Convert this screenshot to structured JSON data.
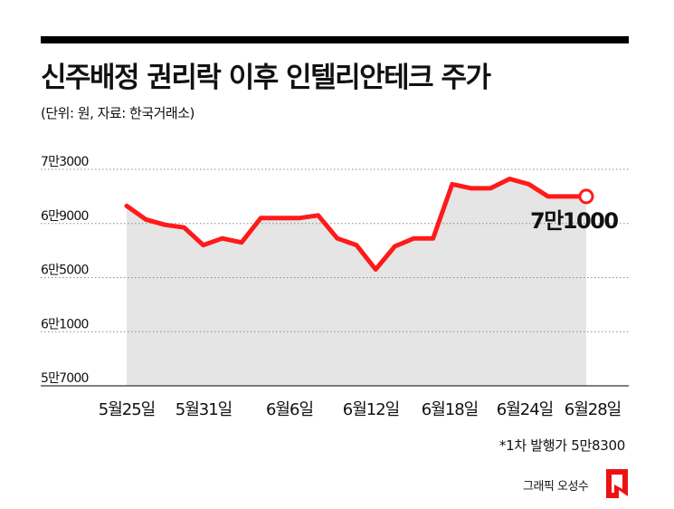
{
  "title": "신주배정 권리락 이후 인텔리안테크 주가",
  "subtitle": "(단위: 원, 자료: 한국거래소)",
  "footnote": "*1차 발행가 5만8300",
  "credit": "그래픽 오성수",
  "colors": {
    "line": "#ff1a1a",
    "area": "#e5e5e5",
    "grid": "#8c8c8c",
    "topbar": "#000000"
  },
  "chart_data": {
    "type": "area",
    "ylim": [
      57000,
      73000
    ],
    "yticks": [
      73000,
      69000,
      65000,
      61000,
      57000
    ],
    "ytick_labels": [
      "7만3000",
      "6만9000",
      "6만5000",
      "6만1000",
      "5만7000"
    ],
    "xtick_labels": [
      "5월25일",
      "5월31일",
      "6월6일",
      "6월12일",
      "6월18일",
      "6월24일",
      "6월28일"
    ],
    "end_label": "7만1000",
    "series": [
      {
        "dates": [
          "5/25",
          "5/26",
          "5/29",
          "5/30",
          "5/31",
          "6/1",
          "6/2",
          "6/5",
          "6/6",
          "6/7",
          "6/8",
          "6/9",
          "6/12",
          "6/13",
          "6/14",
          "6/15",
          "6/16",
          "6/19",
          "6/20",
          "6/21",
          "6/22",
          "6/23",
          "6/26",
          "6/27",
          "6/28"
        ],
        "values": [
          70300,
          69300,
          68900,
          68700,
          67400,
          67900,
          67600,
          69400,
          69400,
          69400,
          69600,
          67900,
          67400,
          65600,
          67300,
          67900,
          67900,
          71900,
          71600,
          71600,
          72300,
          71900,
          71000,
          71000,
          71000
        ]
      }
    ]
  }
}
